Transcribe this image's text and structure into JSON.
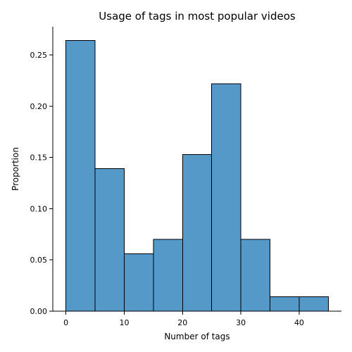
{
  "chart_data": {
    "type": "bar",
    "title": "Usage of tags in most popular videos",
    "xlabel": "Number of tags",
    "ylabel": "Proportion",
    "xlim": [
      -2.25,
      47.25
    ],
    "ylim": [
      0,
      0.2775
    ],
    "xticks": [
      0,
      10,
      20,
      30,
      40
    ],
    "xtick_labels": [
      "0",
      "10",
      "20",
      "30",
      "40"
    ],
    "yticks": [
      0.0,
      0.05,
      0.1,
      0.15,
      0.2,
      0.25
    ],
    "ytick_labels": [
      "0.00",
      "0.05",
      "0.10",
      "0.15",
      "0.20",
      "0.25"
    ],
    "bins": [
      {
        "start": 0,
        "end": 5,
        "value": 0.264
      },
      {
        "start": 5,
        "end": 10,
        "value": 0.139
      },
      {
        "start": 10,
        "end": 15,
        "value": 0.056
      },
      {
        "start": 15,
        "end": 20,
        "value": 0.07
      },
      {
        "start": 20,
        "end": 25,
        "value": 0.153
      },
      {
        "start": 25,
        "end": 30,
        "value": 0.222
      },
      {
        "start": 30,
        "end": 35,
        "value": 0.07
      },
      {
        "start": 35,
        "end": 40,
        "value": 0.014
      },
      {
        "start": 40,
        "end": 45,
        "value": 0.014
      }
    ],
    "colors": {
      "bar_fill": "#5599c9",
      "bar_edge": "#000000",
      "axis": "#000000",
      "background": "#ffffff"
    },
    "grid": false
  }
}
